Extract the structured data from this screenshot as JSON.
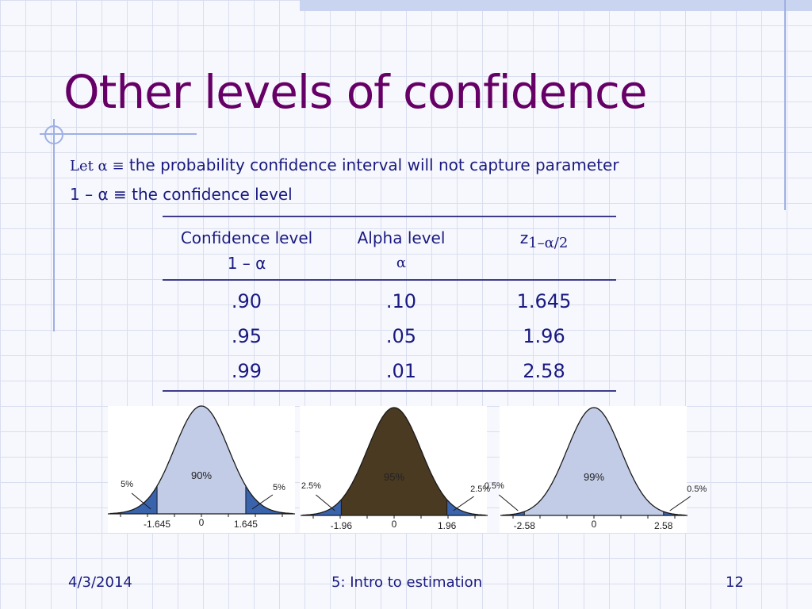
{
  "slide": {
    "title": "Other levels of confidence",
    "def1": {
      "lead": "Let α ≡",
      "text": " the  probability confidence interval will not capture parameter"
    },
    "def2": {
      "lead": "1 – α ≡",
      "text": " the confidence level"
    }
  },
  "table": {
    "headers": [
      {
        "line1": "Confidence level",
        "line2": "1 – α"
      },
      {
        "line1": "Alpha level",
        "line2": "α"
      },
      {
        "line1": "z",
        "sub": "1–α/2"
      }
    ],
    "rows": [
      [
        ".90",
        ".10",
        "1.645"
      ],
      [
        ".95",
        ".05",
        "1.96"
      ],
      [
        ".99",
        ".01",
        "2.58"
      ]
    ]
  },
  "curves": [
    {
      "center_label": "90%",
      "tail_left": "5%",
      "tail_right": "5%",
      "z": 1.645,
      "ticks": [
        "-1.645",
        "0",
        "1.645"
      ],
      "fill": "#c2cce6",
      "tail_fill": "#3a63ad",
      "text_color": "#222222"
    },
    {
      "center_label": "95%",
      "tail_left": "2.5%",
      "tail_right": "2.5%",
      "z": 1.96,
      "ticks": [
        "-1.96",
        "0",
        "1.96"
      ],
      "fill": "#4a3a22",
      "tail_fill": "#3a63ad",
      "text_color": "#222222"
    },
    {
      "center_label": "99%",
      "tail_left": "0.5%",
      "tail_right": "0.5%",
      "z": 2.58,
      "ticks": [
        "-2.58",
        "0",
        "2.58"
      ],
      "fill": "#c2cce6",
      "tail_fill": "#3a63ad",
      "text_color": "#222222"
    }
  ],
  "footer": {
    "date": "4/3/2014",
    "center": "5: Intro to estimation",
    "page": "12"
  }
}
